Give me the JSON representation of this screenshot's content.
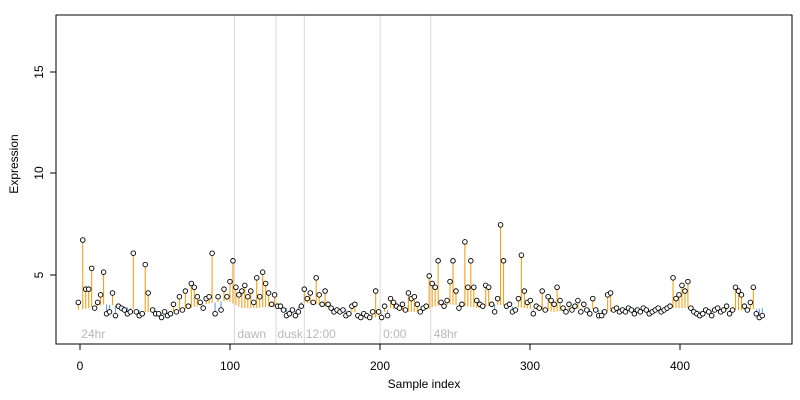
{
  "chart_data": {
    "type": "scatter",
    "title": "",
    "xlabel": "Sample index",
    "ylabel": "Expression",
    "xlim": [
      -15,
      480
    ],
    "ylim": [
      1.5,
      18.9
    ],
    "x_ticks": [
      "0",
      "100",
      "200",
      "300",
      "400"
    ],
    "y_ticks": [
      "5",
      "10",
      "15"
    ],
    "grid": false,
    "legend": "none",
    "colors": {
      "baseline_segment": "#6f9fdb",
      "peak_segment": "#f0a11a",
      "vertical_divider": "#d8d8d8",
      "point_stroke": "#000000",
      "point_fill": "#ffffff",
      "band_label": "#b8b8b8"
    },
    "dividers": [
      105,
      133,
      152,
      203,
      237
    ],
    "region_labels": [
      {
        "label": "24hr",
        "x": 2
      },
      {
        "label": "dawn",
        "x": 107
      },
      {
        "label": "dusk",
        "x": 134
      },
      {
        "label": "12:00",
        "x": 153
      },
      {
        "label": "0:00",
        "x": 205
      },
      {
        "label": "48hr",
        "x": 239
      }
    ],
    "baseline": [
      [
        1,
        3.3
      ],
      [
        18,
        3.6
      ],
      [
        30,
        3.5
      ],
      [
        45,
        3.2
      ],
      [
        55,
        3.1
      ],
      [
        70,
        3.3
      ],
      [
        85,
        3.6
      ],
      [
        100,
        3.8
      ],
      [
        110,
        3.4
      ],
      [
        120,
        3.4
      ],
      [
        130,
        3.5
      ],
      [
        140,
        3.4
      ],
      [
        145,
        3.1
      ],
      [
        150,
        3.7
      ],
      [
        160,
        3.6
      ],
      [
        170,
        3.4
      ],
      [
        180,
        3.3
      ],
      [
        190,
        3.1
      ],
      [
        200,
        2.9
      ],
      [
        210,
        3.4
      ],
      [
        220,
        3.2
      ],
      [
        230,
        3.2
      ],
      [
        240,
        3.5
      ],
      [
        250,
        3.6
      ],
      [
        260,
        3.5
      ],
      [
        270,
        3.4
      ],
      [
        280,
        3.6
      ],
      [
        290,
        3.5
      ],
      [
        300,
        3.4
      ],
      [
        310,
        3.3
      ],
      [
        320,
        3.2
      ],
      [
        330,
        3.3
      ],
      [
        340,
        3.4
      ],
      [
        350,
        3.3
      ],
      [
        360,
        3.2
      ],
      [
        370,
        3.4
      ],
      [
        380,
        3.3
      ],
      [
        390,
        3.3
      ],
      [
        400,
        3.4
      ],
      [
        410,
        3.4
      ],
      [
        420,
        3.2
      ],
      [
        430,
        3.3
      ],
      [
        440,
        3.3
      ],
      [
        450,
        3.3
      ],
      [
        460,
        3.4
      ]
    ],
    "series": [
      {
        "points": [
          [
            0,
            3.7
          ],
          [
            3,
            7.0
          ],
          [
            5,
            4.4
          ],
          [
            7,
            4.4
          ],
          [
            9,
            5.5
          ],
          [
            11,
            3.4
          ],
          [
            13,
            3.7
          ],
          [
            15,
            4.1
          ],
          [
            17,
            5.3
          ],
          [
            19,
            3.1
          ],
          [
            21,
            3.2
          ],
          [
            23,
            4.2
          ],
          [
            25,
            3.0
          ],
          [
            27,
            3.5
          ],
          [
            29,
            3.4
          ],
          [
            31,
            3.3
          ],
          [
            33,
            3.1
          ],
          [
            35,
            3.2
          ],
          [
            37,
            6.3
          ],
          [
            39,
            3.2
          ],
          [
            41,
            3.0
          ],
          [
            43,
            3.1
          ],
          [
            45,
            5.7
          ],
          [
            47,
            4.2
          ],
          [
            50,
            3.3
          ],
          [
            52,
            3.1
          ],
          [
            54,
            3.1
          ],
          [
            56,
            2.9
          ],
          [
            58,
            3.2
          ],
          [
            60,
            3.0
          ],
          [
            62,
            3.1
          ],
          [
            64,
            3.6
          ],
          [
            66,
            3.2
          ],
          [
            68,
            4.0
          ],
          [
            70,
            3.3
          ],
          [
            72,
            4.3
          ],
          [
            74,
            3.5
          ],
          [
            76,
            4.7
          ],
          [
            78,
            4.5
          ],
          [
            80,
            4.0
          ],
          [
            82,
            3.7
          ],
          [
            84,
            3.4
          ],
          [
            86,
            3.9
          ],
          [
            88,
            4.0
          ],
          [
            90,
            6.3
          ],
          [
            92,
            3.1
          ],
          [
            94,
            4.0
          ],
          [
            96,
            3.3
          ],
          [
            98,
            4.4
          ],
          [
            100,
            4.0
          ],
          [
            102,
            4.8
          ],
          [
            104,
            5.9
          ],
          [
            106,
            4.5
          ],
          [
            108,
            4.1
          ],
          [
            110,
            4.3
          ],
          [
            112,
            4.6
          ],
          [
            114,
            4.0
          ],
          [
            116,
            4.3
          ],
          [
            118,
            3.7
          ],
          [
            120,
            5.0
          ],
          [
            122,
            4.0
          ],
          [
            124,
            5.3
          ],
          [
            126,
            4.7
          ],
          [
            128,
            4.2
          ],
          [
            130,
            3.6
          ],
          [
            132,
            4.1
          ],
          [
            134,
            3.5
          ],
          [
            136,
            3.5
          ],
          [
            138,
            3.3
          ],
          [
            140,
            3.0
          ],
          [
            142,
            3.1
          ],
          [
            144,
            3.3
          ],
          [
            146,
            3.0
          ],
          [
            148,
            3.2
          ],
          [
            150,
            3.5
          ],
          [
            152,
            4.4
          ],
          [
            154,
            3.9
          ],
          [
            156,
            4.2
          ],
          [
            158,
            3.7
          ],
          [
            160,
            5.0
          ],
          [
            162,
            4.1
          ],
          [
            164,
            3.6
          ],
          [
            166,
            4.3
          ],
          [
            168,
            3.6
          ],
          [
            170,
            3.4
          ],
          [
            172,
            3.2
          ],
          [
            174,
            3.3
          ],
          [
            176,
            3.2
          ],
          [
            178,
            3.3
          ],
          [
            180,
            3.0
          ],
          [
            182,
            3.1
          ],
          [
            184,
            3.5
          ],
          [
            186,
            3.6
          ],
          [
            188,
            3.0
          ],
          [
            190,
            2.9
          ],
          [
            192,
            3.1
          ],
          [
            194,
            3.0
          ],
          [
            196,
            2.9
          ],
          [
            198,
            3.2
          ],
          [
            200,
            4.3
          ],
          [
            202,
            3.2
          ],
          [
            204,
            2.9
          ],
          [
            206,
            3.5
          ],
          [
            208,
            3.0
          ],
          [
            210,
            3.9
          ],
          [
            212,
            3.7
          ],
          [
            214,
            3.5
          ],
          [
            216,
            3.4
          ],
          [
            218,
            3.6
          ],
          [
            220,
            3.3
          ],
          [
            222,
            4.2
          ],
          [
            224,
            3.9
          ],
          [
            226,
            4.0
          ],
          [
            228,
            3.6
          ],
          [
            230,
            3.2
          ],
          [
            232,
            3.4
          ],
          [
            234,
            3.5
          ],
          [
            236,
            5.1
          ],
          [
            238,
            4.7
          ],
          [
            240,
            4.5
          ],
          [
            242,
            5.9
          ],
          [
            244,
            3.7
          ],
          [
            246,
            3.5
          ],
          [
            248,
            3.8
          ],
          [
            250,
            4.8
          ],
          [
            252,
            5.9
          ],
          [
            254,
            4.3
          ],
          [
            256,
            3.4
          ],
          [
            258,
            3.6
          ],
          [
            260,
            6.9
          ],
          [
            262,
            4.5
          ],
          [
            264,
            5.9
          ],
          [
            266,
            4.5
          ],
          [
            268,
            3.8
          ],
          [
            270,
            3.6
          ],
          [
            272,
            3.5
          ],
          [
            274,
            4.6
          ],
          [
            276,
            4.5
          ],
          [
            278,
            3.6
          ],
          [
            280,
            3.2
          ],
          [
            282,
            3.9
          ],
          [
            284,
            7.8
          ],
          [
            286,
            5.9
          ],
          [
            288,
            3.5
          ],
          [
            290,
            3.6
          ],
          [
            292,
            3.2
          ],
          [
            294,
            3.3
          ],
          [
            296,
            3.9
          ],
          [
            298,
            6.2
          ],
          [
            300,
            4.3
          ],
          [
            302,
            3.7
          ],
          [
            304,
            3.8
          ],
          [
            306,
            3.1
          ],
          [
            308,
            3.5
          ],
          [
            310,
            3.4
          ],
          [
            312,
            4.3
          ],
          [
            314,
            3.3
          ],
          [
            316,
            4.0
          ],
          [
            318,
            3.8
          ],
          [
            320,
            3.6
          ],
          [
            322,
            4.5
          ],
          [
            324,
            3.8
          ],
          [
            326,
            3.4
          ],
          [
            328,
            3.2
          ],
          [
            330,
            3.6
          ],
          [
            332,
            3.3
          ],
          [
            334,
            3.5
          ],
          [
            336,
            3.8
          ],
          [
            338,
            3.2
          ],
          [
            340,
            3.6
          ],
          [
            342,
            3.3
          ],
          [
            344,
            3.1
          ],
          [
            346,
            3.9
          ],
          [
            348,
            3.3
          ],
          [
            350,
            3.0
          ],
          [
            352,
            3.0
          ],
          [
            354,
            3.2
          ],
          [
            356,
            4.1
          ],
          [
            358,
            4.2
          ],
          [
            360,
            3.3
          ],
          [
            362,
            3.4
          ],
          [
            364,
            3.2
          ],
          [
            366,
            3.3
          ],
          [
            368,
            3.2
          ],
          [
            370,
            3.4
          ],
          [
            372,
            3.3
          ],
          [
            374,
            3.1
          ],
          [
            376,
            3.3
          ],
          [
            378,
            3.2
          ],
          [
            380,
            3.4
          ],
          [
            382,
            3.3
          ],
          [
            384,
            3.1
          ],
          [
            386,
            3.2
          ],
          [
            388,
            3.3
          ],
          [
            390,
            3.4
          ],
          [
            392,
            3.2
          ],
          [
            394,
            3.3
          ],
          [
            396,
            3.4
          ],
          [
            398,
            3.5
          ],
          [
            400,
            5.0
          ],
          [
            402,
            3.9
          ],
          [
            404,
            4.1
          ],
          [
            406,
            4.6
          ],
          [
            408,
            4.3
          ],
          [
            410,
            4.8
          ],
          [
            412,
            3.4
          ],
          [
            414,
            3.2
          ],
          [
            416,
            3.1
          ],
          [
            418,
            3.0
          ],
          [
            420,
            3.1
          ],
          [
            422,
            3.3
          ],
          [
            424,
            3.2
          ],
          [
            426,
            3.0
          ],
          [
            428,
            3.3
          ],
          [
            430,
            3.4
          ],
          [
            432,
            3.2
          ],
          [
            434,
            3.3
          ],
          [
            436,
            3.5
          ],
          [
            438,
            3.1
          ],
          [
            440,
            3.3
          ],
          [
            442,
            4.5
          ],
          [
            444,
            4.3
          ],
          [
            446,
            4.1
          ],
          [
            448,
            3.5
          ],
          [
            450,
            3.3
          ],
          [
            452,
            3.7
          ],
          [
            454,
            4.5
          ],
          [
            456,
            3.1
          ],
          [
            458,
            2.9
          ],
          [
            460,
            3.0
          ]
        ]
      }
    ]
  }
}
